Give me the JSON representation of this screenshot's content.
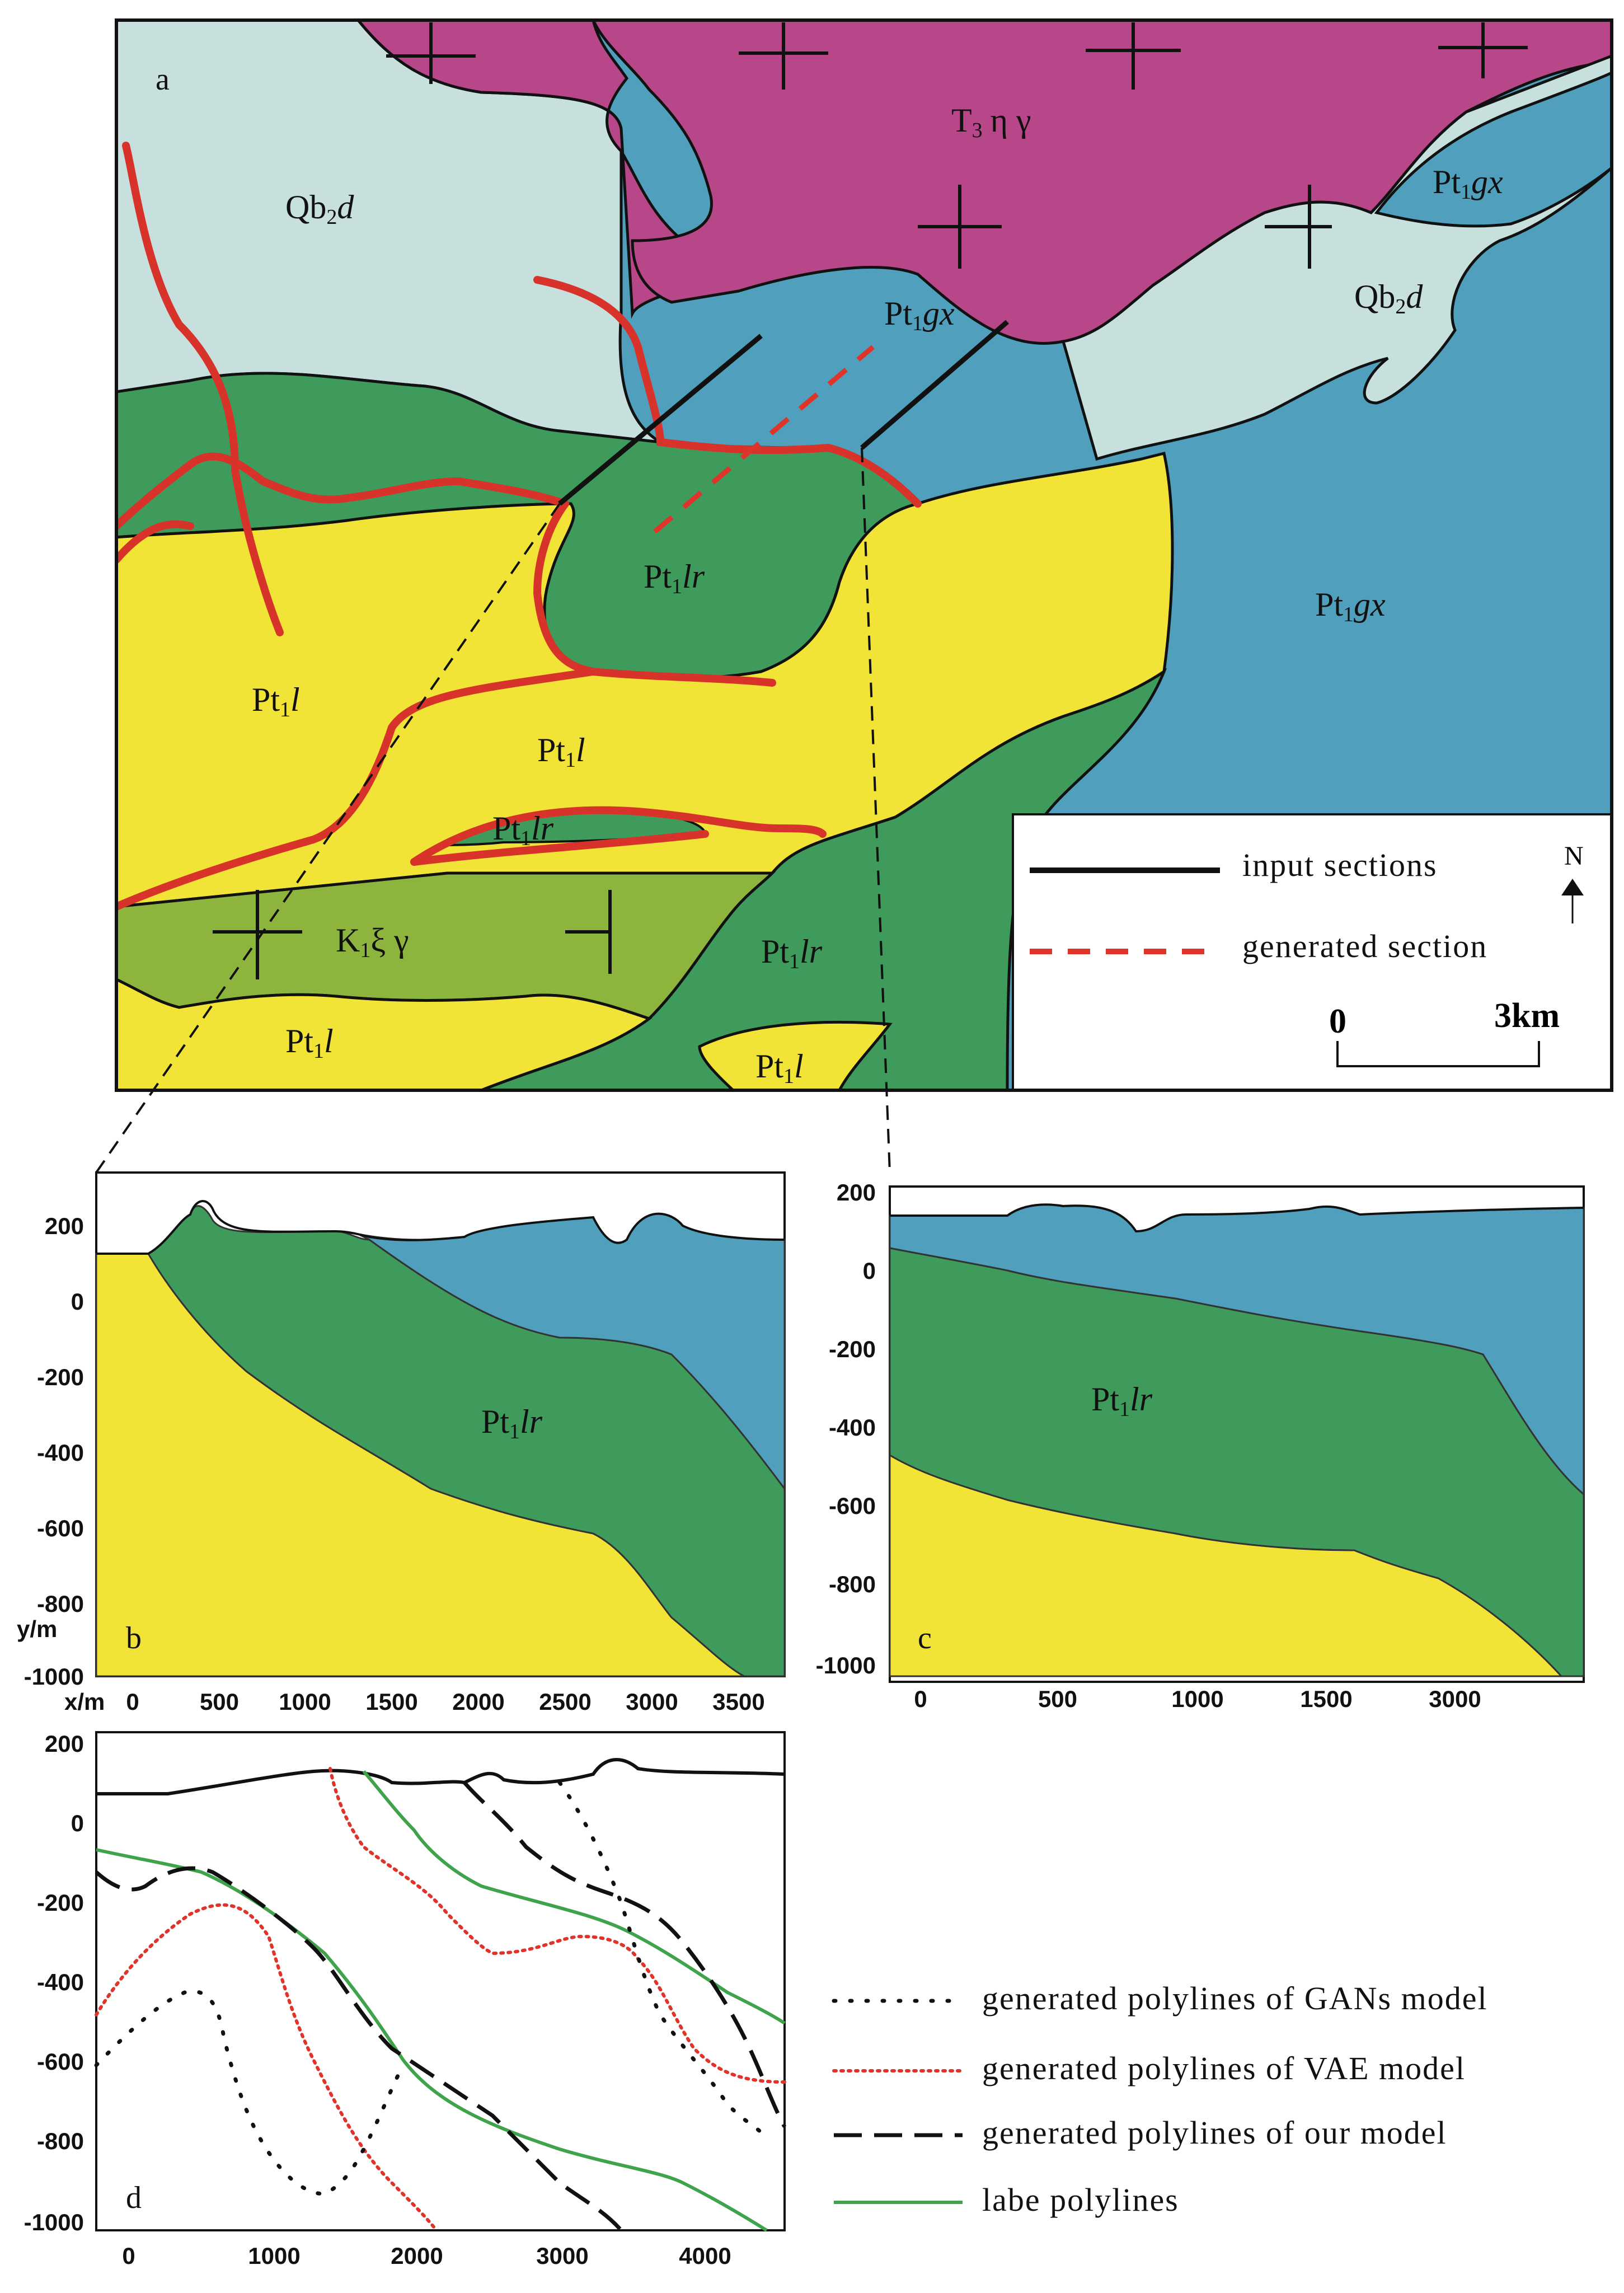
{
  "panels": {
    "a": "a",
    "b": "b",
    "c": "c",
    "d": "d"
  },
  "map": {
    "units": {
      "granite_T3": {
        "main": "T",
        "sub": "3",
        "rest": "η  γ"
      },
      "Qb2d": {
        "main": "Qb",
        "sub": "2",
        "rest": "d"
      },
      "Pt1gx": {
        "main": "Pt",
        "sub": "1",
        "rest": "gx"
      },
      "Pt1lr": {
        "main": "Pt",
        "sub": "1",
        "rest": "lr"
      },
      "Pt1l": {
        "main": "Pt",
        "sub": "1",
        "rest": "l"
      },
      "K1": {
        "main": "K",
        "sub": "1",
        "rest": "ξ γ"
      }
    },
    "legend": {
      "input_sections": "input sections",
      "generated_section": "generated section",
      "north": "N",
      "scale_start": "0",
      "scale_end": "3km"
    },
    "colors": {
      "granite": "#b8478a",
      "qb2d": "#c7e0dd",
      "gx": "#4f9fbd",
      "lr": "#3f9b5c",
      "l": "#f2e437",
      "k1": "#8db53e",
      "fault": "#d7332a"
    }
  },
  "section_b": {
    "y_ticks": [
      "200",
      "0",
      "-200",
      "-400",
      "-600",
      "-800",
      "-1000"
    ],
    "x_ticks": [
      "0",
      "500",
      "1000",
      "1500",
      "2000",
      "2500",
      "3000",
      "3500"
    ],
    "y_unit": "y/m",
    "x_unit": "x/m",
    "label": {
      "main": "Pt",
      "sub": "1",
      "rest": "lr"
    }
  },
  "section_c": {
    "y_ticks": [
      "200",
      "0",
      "-200",
      "-400",
      "-600",
      "-800",
      "-1000"
    ],
    "x_ticks": [
      "0",
      "500",
      "1000",
      "1500",
      "3000"
    ],
    "label": {
      "main": "Pt",
      "sub": "1",
      "rest": "lr"
    }
  },
  "section_d": {
    "y_ticks": [
      "200",
      "0",
      "-200",
      "-400",
      "-600",
      "-800",
      "-1000"
    ],
    "x_ticks": [
      "0",
      "1000",
      "2000",
      "3000",
      "4000"
    ],
    "legend": {
      "gans": "generated polylines of GANs model",
      "vae": "generated polylines of VAE model",
      "ours": "generated polylines of our model",
      "label": "labe polylines"
    },
    "colors": {
      "gans": "#111111",
      "vae": "#e0342a",
      "ours": "#111111",
      "label": "#3ea34a"
    }
  }
}
